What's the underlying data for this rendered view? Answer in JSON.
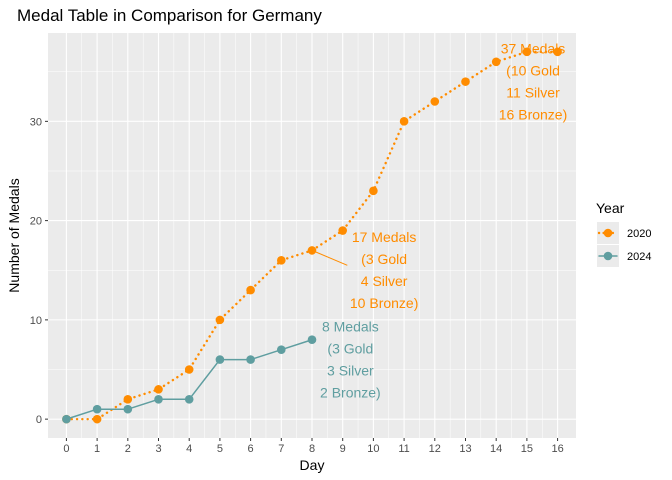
{
  "chart_data": {
    "type": "line",
    "title": "Medal Table in Comparison for Germany",
    "xlabel": "Day",
    "ylabel": "Number of Medals",
    "xlim": [
      -0.6,
      16.6
    ],
    "ylim": [
      -1.9,
      38.9
    ],
    "x_ticks": [
      0,
      1,
      2,
      3,
      4,
      5,
      6,
      7,
      8,
      9,
      10,
      11,
      12,
      13,
      14,
      15,
      16
    ],
    "y_ticks": [
      0,
      10,
      20,
      30
    ],
    "grid": true,
    "legend": {
      "title": "Year",
      "placement": "right"
    },
    "series": [
      {
        "name": "2020",
        "color": "#ff8c00",
        "line_style": "dotted",
        "x": [
          0,
          1,
          2,
          3,
          4,
          5,
          6,
          7,
          8,
          9,
          10,
          11,
          12,
          13,
          14,
          15,
          16
        ],
        "y": [
          0,
          0,
          2,
          3,
          5,
          10,
          13,
          16,
          17,
          19,
          23,
          30,
          32,
          34,
          36,
          37,
          37
        ]
      },
      {
        "name": "2024",
        "color": "#5f9ea0",
        "line_style": "solid",
        "x": [
          0,
          1,
          2,
          3,
          4,
          5,
          6,
          7,
          8
        ],
        "y": [
          0,
          1,
          1,
          2,
          2,
          6,
          6,
          7,
          8
        ]
      }
    ],
    "annotations": [
      {
        "series": "2020",
        "at_x": 15.2,
        "at_y": 34,
        "leader": false,
        "lines": [
          "37 Medals",
          "(10 Gold",
          "11 Silver",
          "16 Bronze)"
        ]
      },
      {
        "series": "2020",
        "at_x": 10.35,
        "at_y": 15,
        "leader": true,
        "leader_from": [
          8,
          17
        ],
        "leader_to": [
          9.15,
          15.5
        ],
        "lines": [
          "17 Medals",
          "(3 Gold",
          "4 Silver",
          "10 Bronze)"
        ]
      },
      {
        "series": "2024",
        "at_x": 9.25,
        "at_y": 6.0,
        "leader": false,
        "lines": [
          "8 Medals",
          "(3 Gold",
          "3 Silver",
          "2 Bronze)"
        ]
      }
    ]
  }
}
